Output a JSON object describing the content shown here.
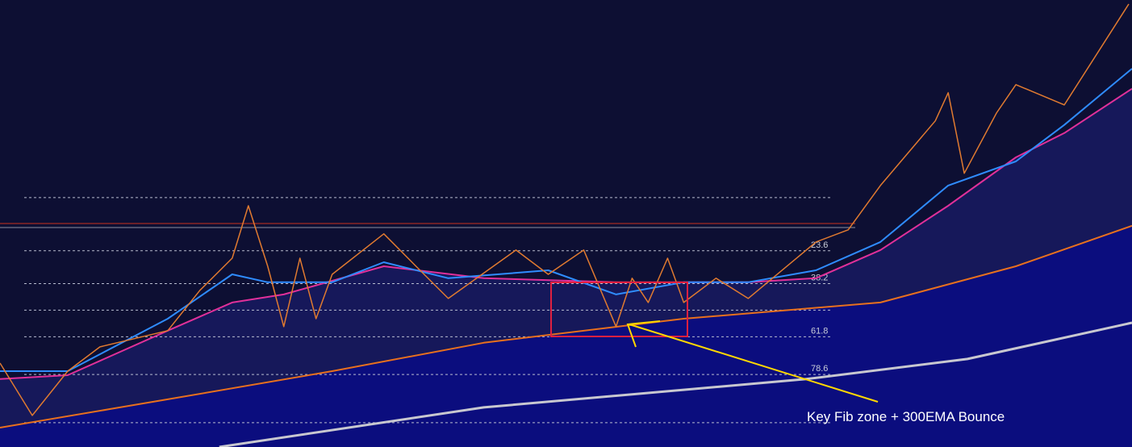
{
  "chart_data": {
    "type": "line",
    "annotation": "Key Fib zone + 300EMA Bounce",
    "xlim": [
      0,
      351
    ],
    "ylim": [
      110.8,
      -87.8
    ],
    "fib_levels": [
      23.6,
      38.2,
      61.8,
      78.6
    ],
    "grid_levels": [
      0,
      50,
      100
    ],
    "levels": [
      {
        "value": 11.5,
        "color": "#c8301e"
      },
      {
        "value": 13.3,
        "color": "#8a8fa0"
      }
    ],
    "series": [
      {
        "color": "#e07a30",
        "x": [
          0,
          10,
          21,
          31,
          52,
          62,
          72,
          77,
          83,
          88,
          93,
          98,
          103,
          119,
          129,
          139,
          160,
          170,
          181,
          191,
          196,
          201,
          207,
          212,
          222,
          232,
          253,
          263,
          273,
          290,
          294,
          299,
          309,
          315,
          330,
          350
        ],
        "values": [
          73.5,
          96.8,
          77.1,
          66.3,
          59.1,
          41.2,
          26.9,
          3.6,
          30.5,
          57.3,
          26.9,
          53.8,
          34.1,
          16.1,
          30.5,
          44.8,
          23.3,
          34.1,
          23.3,
          57.3,
          35.8,
          46.6,
          26.9,
          46.6,
          35.8,
          44.8,
          19.7,
          14.3,
          -5.4,
          -34.1,
          -46.6,
          -10.8,
          -37.6,
          -50.2,
          -41.2,
          -86.0
        ]
      },
      {
        "color": "#2f8cff",
        "x": [
          0,
          21,
          52,
          72,
          83,
          103,
          119,
          139,
          170,
          191,
          212,
          232,
          253,
          273,
          294,
          315,
          330,
          351
        ],
        "values": [
          77.1,
          77.1,
          53.8,
          34.1,
          37.6,
          37.6,
          28.7,
          35.8,
          32.3,
          43.0,
          37.6,
          37.6,
          32.3,
          19.7,
          -5.4,
          -16.1,
          -32.3,
          -57.3
        ]
      },
      {
        "color": "#e0309a",
        "x": [
          0,
          21,
          52,
          72,
          88,
          119,
          150,
          191,
          232,
          253,
          273,
          294,
          315,
          330,
          351
        ],
        "values": [
          80.6,
          78.9,
          59.1,
          46.6,
          43.0,
          30.5,
          35.8,
          37.6,
          37.6,
          35.8,
          23.3,
          3.6,
          -17.9,
          -28.7,
          -48.4
        ]
      },
      {
        "color": "#e8701e",
        "x": [
          0,
          52,
          103,
          150,
          212,
          273,
          315,
          351
        ],
        "values": [
          102.2,
          89.6,
          77.1,
          64.5,
          53.8,
          46.6,
          30.5,
          12.5
        ]
      },
      {
        "color": "#c8c8d0",
        "x": [
          68,
          150,
          250,
          300,
          351
        ],
        "values": [
          110.8,
          93.2,
          80.6,
          71.7,
          55.6
        ]
      }
    ]
  }
}
